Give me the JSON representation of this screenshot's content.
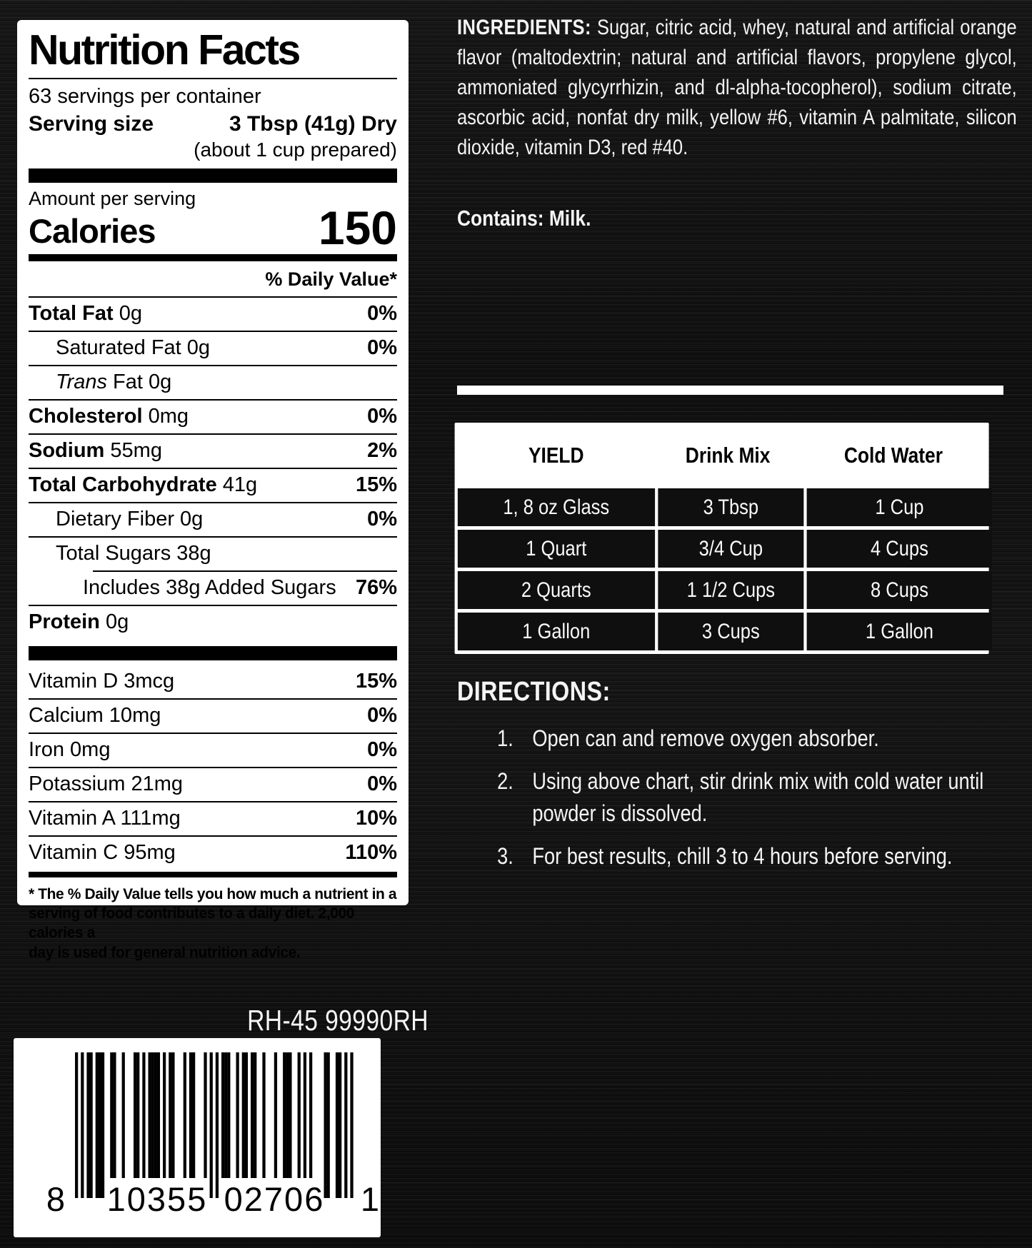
{
  "nutrition": {
    "title": "Nutrition Facts",
    "servings_per_container": "63 servings per container",
    "serving_size_label": "Serving size",
    "serving_size_value": "3 Tbsp (41g) Dry",
    "serving_size_note": "(about 1 cup prepared)",
    "amount_per_serving_label": "Amount per serving",
    "calories_label": "Calories",
    "calories_value": "150",
    "daily_value_header": "% Daily Value*",
    "rows": [
      {
        "name": "Total Fat",
        "value": "0g",
        "dv": "0%",
        "bold": true,
        "indent": 0
      },
      {
        "name": "Saturated Fat",
        "value": "0g",
        "dv": "0%",
        "bold": false,
        "indent": 1
      },
      {
        "name": "Trans Fat",
        "value": "0g",
        "dv": "",
        "bold": false,
        "indent": 1,
        "italic_first": true
      },
      {
        "name": "Cholesterol",
        "value": "0mg",
        "dv": "0%",
        "bold": true,
        "indent": 0
      },
      {
        "name": "Sodium",
        "value": "55mg",
        "dv": "2%",
        "bold": true,
        "indent": 0
      },
      {
        "name": "Total Carbohydrate",
        "value": "41g",
        "dv": "15%",
        "bold": true,
        "indent": 0
      },
      {
        "name": "Dietary Fiber",
        "value": "0g",
        "dv": "0%",
        "bold": false,
        "indent": 1
      },
      {
        "name": "Total Sugars",
        "value": "38g",
        "dv": "",
        "bold": false,
        "indent": 1
      },
      {
        "name": "Includes 38g Added Sugars",
        "value": "",
        "dv": "76%",
        "bold": false,
        "indent": 2,
        "rule_indent": 90
      },
      {
        "name": "Protein",
        "value": "0g",
        "dv": "",
        "bold": true,
        "indent": 0
      }
    ],
    "vitamins": [
      {
        "name": "Vitamin D",
        "value": "3mcg",
        "dv": "15%"
      },
      {
        "name": "Calcium",
        "value": "10mg",
        "dv": "0%"
      },
      {
        "name": "Iron",
        "value": "0mg",
        "dv": "0%"
      },
      {
        "name": "Potassium",
        "value": "21mg",
        "dv": "0%"
      },
      {
        "name": "Vitamin A",
        "value": "111mg",
        "dv": "10%"
      },
      {
        "name": "Vitamin C",
        "value": "95mg",
        "dv": "110%"
      }
    ],
    "footnote_lines": [
      "* The % Daily Value tells you how much a nutrient in a",
      "serving of food contributes to a daily diet. 2,000 calories a",
      "day is used for general nutrition advice."
    ]
  },
  "right": {
    "ingredients_label": "INGREDIENTS:",
    "ingredients_text": "Sugar, citric acid, whey, natural and artificial orange flavor (maltodextrin; natural and artificial flavors, propylene glycol, ammoniated glycyrrhizin, and dl-alpha-tocopherol), sodium citrate, ascorbic acid, nonfat dry milk, yellow #6, vitamin A palmitate, silicon dioxide, vitamin D3, red #40.",
    "contains": "Contains: Milk.",
    "yield_table": {
      "columns": [
        "YIELD",
        "Drink Mix",
        "Cold Water"
      ],
      "rows": [
        [
          "1, 8 oz Glass",
          "3 Tbsp",
          "1 Cup"
        ],
        [
          "1 Quart",
          "3/4 Cup",
          "4 Cups"
        ],
        [
          "2 Quarts",
          "1 1/2 Cups",
          "8 Cups"
        ],
        [
          "1 Gallon",
          "3 Cups",
          "1 Gallon"
        ]
      ]
    },
    "directions_label": "DIRECTIONS:",
    "directions": [
      "Open can and remove oxygen absorber.",
      "Using above chart, stir drink mix with cold water until powder is dissolved.",
      "For best results, chill 3 to 4 hours before serving."
    ]
  },
  "codes": {
    "product_code": "RH-45 99990RH",
    "upc_digits": [
      "8",
      "10355",
      "02706",
      "1"
    ]
  },
  "colors": {
    "background": "#121212",
    "panel": "#ffffff",
    "text_dark": "#000000",
    "text_light": "#f4f4f4",
    "table_cell": "#0f0f0f"
  }
}
